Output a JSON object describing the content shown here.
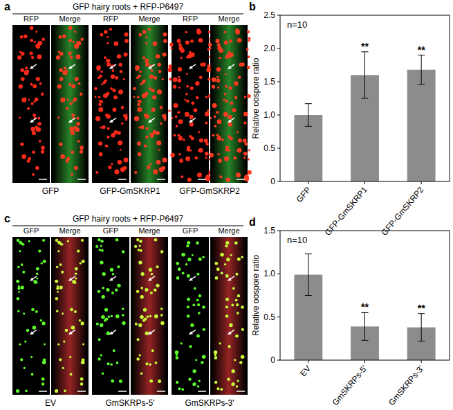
{
  "chart_data": [
    {
      "type": "bar",
      "panel_label": "b",
      "ylabel": "Relative oospore ratio",
      "categories": [
        "GFP",
        "GFP-GmSKRP1",
        "GFP-GmSKRP2"
      ],
      "values": [
        1.0,
        1.6,
        1.68
      ],
      "errors": [
        0.17,
        0.35,
        0.22
      ],
      "color": "#8c8c8c",
      "ylim": [
        0,
        2.5
      ],
      "yticks": [
        0,
        0.5,
        {
          "value": 1,
          "label": "1.0"
        },
        1.5,
        {
          "value": 2,
          "label": "2.0"
        },
        2.5
      ],
      "annotations": [
        {
          "text": "n=10"
        },
        {
          "text": "**",
          "x": 1
        },
        {
          "text": "**",
          "x": 2
        }
      ],
      "grid": false
    },
    {
      "type": "bar",
      "panel_label": "d",
      "ylabel": "Relative oospore ratio",
      "categories": [
        "EV",
        "GmSKRPs-5'",
        "GmSKRPs-3'"
      ],
      "values": [
        0.99,
        0.39,
        0.38
      ],
      "errors": [
        0.24,
        0.16,
        0.16
      ],
      "color": "#8c8c8c",
      "ylim": [
        0,
        1.5
      ],
      "yticks": [
        0,
        0.5,
        {
          "value": 1,
          "label": "1.0"
        },
        1.5
      ],
      "annotations": [
        {
          "text": "n=10"
        },
        {
          "text": "**",
          "x": 1
        },
        {
          "text": "**",
          "x": 2
        }
      ],
      "grid": false
    }
  ],
  "figure": {
    "panels": [
      {
        "label": "a",
        "header": "GFP hairy roots + RFP-P6497",
        "columns": [
          "RFP",
          "Merge"
        ],
        "samples": [
          "GFP",
          "GFP-GmSKRP1",
          "GFP-GmSKRP2"
        ],
        "dot_color": "#ff2a1a",
        "root_color": "#2f9a2f"
      },
      {
        "label": "c",
        "header": "GFP hairy roots + RFP-P6497",
        "columns": [
          "GFP",
          "Merge"
        ],
        "samples": [
          "EV",
          "GmSKRPs-5'",
          "GmSKRPs-3'"
        ],
        "dot_color": "#5cff2a",
        "root_color": "#b02a2a"
      }
    ]
  }
}
